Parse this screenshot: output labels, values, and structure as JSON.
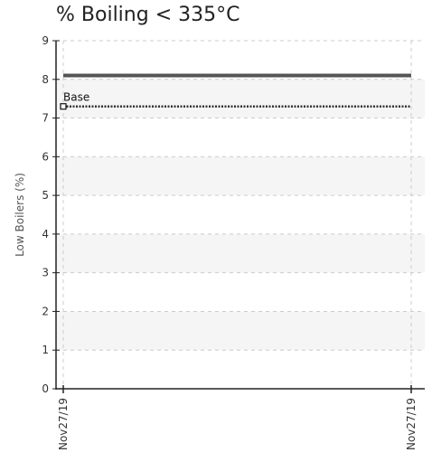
{
  "chart_data": {
    "type": "line",
    "title": "% Boiling < 335°C",
    "xlabel": "",
    "ylabel": "Low Boilers (%)",
    "ylim": [
      0,
      9
    ],
    "yticks": [
      0,
      1,
      2,
      3,
      4,
      5,
      6,
      7,
      8,
      9
    ],
    "x": [
      "Nov27/19",
      "Nov27/19"
    ],
    "grid": true,
    "series": [
      {
        "values": [
          8.1,
          8.1
        ],
        "style": "solid",
        "color": "#555555"
      },
      {
        "values": [
          7.3,
          7.3
        ],
        "style": "dotted",
        "color": "#333333"
      }
    ],
    "annotations": [
      {
        "text": "Base",
        "x": "Nov27/19",
        "y": 7.3
      }
    ],
    "band_color": "#f5f5f5",
    "grid_color": "#cccccc"
  }
}
